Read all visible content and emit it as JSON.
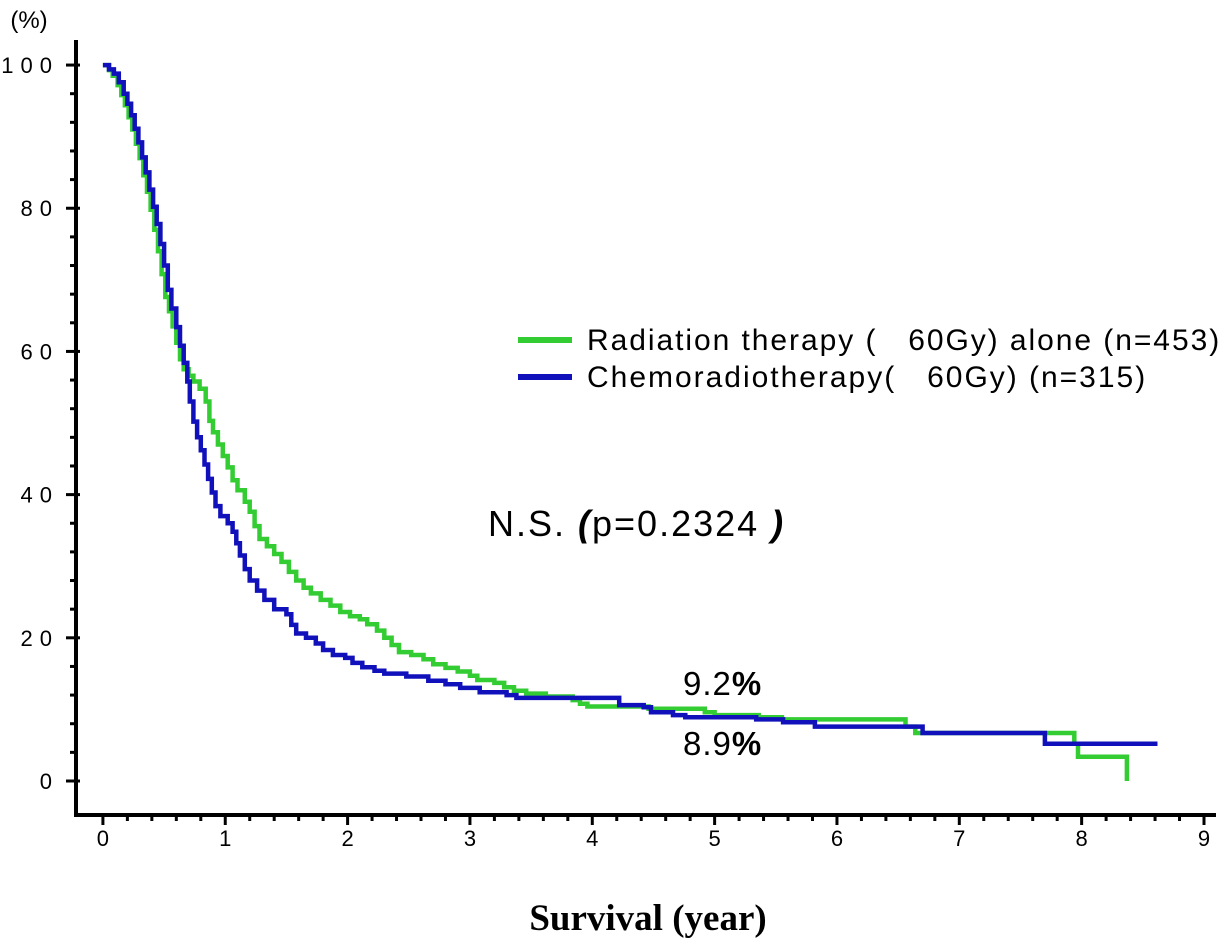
{
  "chart_data": {
    "type": "line",
    "step": true,
    "xlabel": "Survival (year)",
    "ylabel": "(%)",
    "xlim": [
      -0.22,
      9.09
    ],
    "ylim": [
      -4.75,
      103.5
    ],
    "x_tick_labels": [
      "0",
      "1",
      "2",
      "3",
      "4",
      "5",
      "6",
      "7",
      "8",
      "9"
    ],
    "y_tick_labels": [
      "0",
      "20",
      "40",
      "60",
      "80",
      "100"
    ],
    "grid": false,
    "legend_position": "center-right",
    "series": [
      {
        "name": "Radiation therapy (   60Gy) alone (n=453)",
        "color": "#33cc33",
        "points": [
          [
            0,
            100
          ],
          [
            0.05,
            99.3
          ],
          [
            0.08,
            98.5
          ],
          [
            0.12,
            97.2
          ],
          [
            0.15,
            95.8
          ],
          [
            0.18,
            94.4
          ],
          [
            0.21,
            92.7
          ],
          [
            0.24,
            91.0
          ],
          [
            0.27,
            89.0
          ],
          [
            0.3,
            87.0
          ],
          [
            0.33,
            84.6
          ],
          [
            0.36,
            82.3
          ],
          [
            0.39,
            79.8
          ],
          [
            0.42,
            77.0
          ],
          [
            0.45,
            74.0
          ],
          [
            0.48,
            70.8
          ],
          [
            0.51,
            67.6
          ],
          [
            0.54,
            65.6
          ],
          [
            0.57,
            63.5
          ],
          [
            0.6,
            61.2
          ],
          [
            0.63,
            58.9
          ],
          [
            0.66,
            57.5
          ],
          [
            0.7,
            56.6
          ],
          [
            0.74,
            55.8
          ],
          [
            0.79,
            54.8
          ],
          [
            0.84,
            53.0
          ],
          [
            0.87,
            50.3
          ],
          [
            0.9,
            48.7
          ],
          [
            0.94,
            47.0
          ],
          [
            0.98,
            45.4
          ],
          [
            1.02,
            43.8
          ],
          [
            1.06,
            42.0
          ],
          [
            1.1,
            40.6
          ],
          [
            1.16,
            39.0
          ],
          [
            1.2,
            37.6
          ],
          [
            1.24,
            35.6
          ],
          [
            1.28,
            33.8
          ],
          [
            1.34,
            32.8
          ],
          [
            1.4,
            31.7
          ],
          [
            1.46,
            30.6
          ],
          [
            1.52,
            29.2
          ],
          [
            1.58,
            28.0
          ],
          [
            1.64,
            27.0
          ],
          [
            1.7,
            26.2
          ],
          [
            1.78,
            25.3
          ],
          [
            1.86,
            24.5
          ],
          [
            1.94,
            23.6
          ],
          [
            2.02,
            23.0
          ],
          [
            2.1,
            22.6
          ],
          [
            2.16,
            21.9
          ],
          [
            2.24,
            21.0
          ],
          [
            2.3,
            20.0
          ],
          [
            2.36,
            19.0
          ],
          [
            2.42,
            18.0
          ],
          [
            2.52,
            17.6
          ],
          [
            2.62,
            17.0
          ],
          [
            2.7,
            16.3
          ],
          [
            2.8,
            15.8
          ],
          [
            2.9,
            15.3
          ],
          [
            3.0,
            14.7
          ],
          [
            3.06,
            14.1
          ],
          [
            3.2,
            13.7
          ],
          [
            3.28,
            13.1
          ],
          [
            3.36,
            12.6
          ],
          [
            3.46,
            12.2
          ],
          [
            3.62,
            11.8
          ],
          [
            3.84,
            11.3
          ],
          [
            3.9,
            10.8
          ],
          [
            3.96,
            10.4
          ],
          [
            4.46,
            10.1
          ],
          [
            4.92,
            9.6
          ],
          [
            5.0,
            9.2
          ],
          [
            5.36,
            8.9
          ],
          [
            5.55,
            8.6
          ],
          [
            6.56,
            7.6
          ],
          [
            6.64,
            6.7
          ],
          [
            7.94,
            5.2
          ],
          [
            7.97,
            3.4
          ],
          [
            8.37,
            0
          ]
        ]
      },
      {
        "name": "Chemoradiotherapy(   60Gy) (n=315)",
        "color": "#1111bb",
        "points": [
          [
            0,
            100
          ],
          [
            0.05,
            99.4
          ],
          [
            0.09,
            98.8
          ],
          [
            0.13,
            97.6
          ],
          [
            0.17,
            96.0
          ],
          [
            0.2,
            94.6
          ],
          [
            0.23,
            93.0
          ],
          [
            0.26,
            91.1
          ],
          [
            0.29,
            89.2
          ],
          [
            0.32,
            87.1
          ],
          [
            0.35,
            85.0
          ],
          [
            0.38,
            82.6
          ],
          [
            0.41,
            80.2
          ],
          [
            0.44,
            77.8
          ],
          [
            0.47,
            75.0
          ],
          [
            0.5,
            72.0
          ],
          [
            0.53,
            68.6
          ],
          [
            0.56,
            66.0
          ],
          [
            0.6,
            63.4
          ],
          [
            0.63,
            60.8
          ],
          [
            0.66,
            58.4
          ],
          [
            0.69,
            55.8
          ],
          [
            0.71,
            53.0
          ],
          [
            0.74,
            50.2
          ],
          [
            0.77,
            48.0
          ],
          [
            0.8,
            46.2
          ],
          [
            0.83,
            44.2
          ],
          [
            0.86,
            42.2
          ],
          [
            0.89,
            40.3
          ],
          [
            0.92,
            38.4
          ],
          [
            0.96,
            37.0
          ],
          [
            1.02,
            36.0
          ],
          [
            1.06,
            34.8
          ],
          [
            1.09,
            33.2
          ],
          [
            1.12,
            31.5
          ],
          [
            1.16,
            29.6
          ],
          [
            1.2,
            28.0
          ],
          [
            1.26,
            26.6
          ],
          [
            1.32,
            25.3
          ],
          [
            1.4,
            24.0
          ],
          [
            1.5,
            23.3
          ],
          [
            1.54,
            21.8
          ],
          [
            1.58,
            20.6
          ],
          [
            1.66,
            20.0
          ],
          [
            1.74,
            19.2
          ],
          [
            1.8,
            18.3
          ],
          [
            1.88,
            17.6
          ],
          [
            1.98,
            17.2
          ],
          [
            2.04,
            16.5
          ],
          [
            2.12,
            15.9
          ],
          [
            2.22,
            15.4
          ],
          [
            2.3,
            15.0
          ],
          [
            2.48,
            14.6
          ],
          [
            2.66,
            14.0
          ],
          [
            2.8,
            13.5
          ],
          [
            2.92,
            13.0
          ],
          [
            3.08,
            12.4
          ],
          [
            3.3,
            12.0
          ],
          [
            3.38,
            11.6
          ],
          [
            4.22,
            10.6
          ],
          [
            4.42,
            10.3
          ],
          [
            4.48,
            9.6
          ],
          [
            4.66,
            9.2
          ],
          [
            4.76,
            8.9
          ],
          [
            5.34,
            8.6
          ],
          [
            5.56,
            8.2
          ],
          [
            5.82,
            7.6
          ],
          [
            6.7,
            6.7
          ],
          [
            7.7,
            5.2
          ],
          [
            8.62,
            5.2
          ]
        ]
      }
    ],
    "annotations": {
      "significance": {
        "label": "N.S. ",
        "open_paren": "(",
        "p_value": "p=0.2324",
        "close_paren": ")"
      },
      "five_year_rate_radiation": {
        "value": "9.2",
        "unit": "%"
      },
      "five_year_rate_chemoradiation": {
        "value": "8.9",
        "unit": "%"
      }
    }
  }
}
